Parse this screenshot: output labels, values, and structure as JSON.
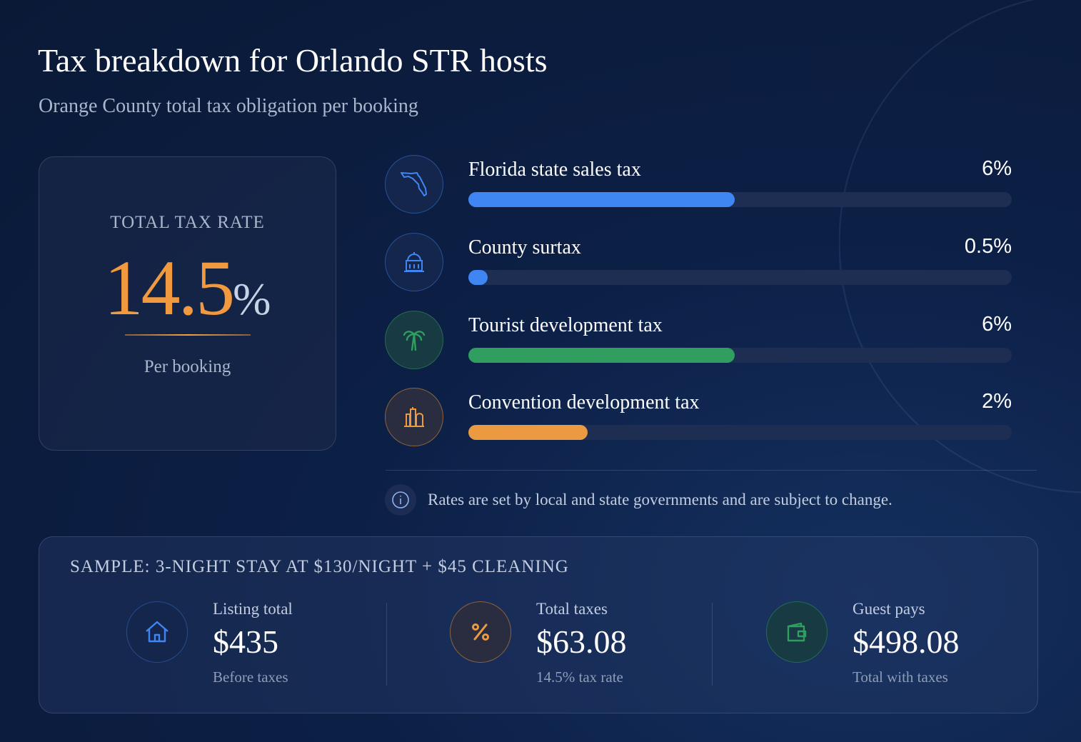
{
  "header": {
    "title": "Tax breakdown for Orlando STR hosts",
    "subtitle": "Orange County total tax obligation per booking"
  },
  "summary_card": {
    "label": "TOTAL TAX RATE",
    "value": "14.5",
    "unit": "%",
    "caption": "Per booking"
  },
  "taxes": [
    {
      "name": "Florida state sales tax",
      "rate": "6%",
      "fill_pct": 49,
      "color": "#3f86f2",
      "icon": "florida-map-icon"
    },
    {
      "name": "County surtax",
      "rate": "0.5%",
      "fill_pct": 3.5,
      "color": "#3f86f2",
      "icon": "government-building-icon"
    },
    {
      "name": "Tourist development tax",
      "rate": "6%",
      "fill_pct": 49,
      "color": "#2f9e5f",
      "icon": "palm-tree-icon"
    },
    {
      "name": "Convention development tax",
      "rate": "2%",
      "fill_pct": 22,
      "color": "#ec9a42",
      "icon": "city-skyline-icon"
    }
  ],
  "note": "Rates are set by local and state governments and are subject to change.",
  "sample": {
    "heading": "SAMPLE: 3-NIGHT STAY AT $130/NIGHT + $45 CLEANING",
    "items": [
      {
        "title": "Listing total",
        "value": "$435",
        "sub": "Before taxes",
        "icon": "house-icon",
        "color": "#3f86f2"
      },
      {
        "title": "Total taxes",
        "value": "$63.08",
        "sub": "14.5% tax rate",
        "icon": "percent-icon",
        "color": "#ec9a42"
      },
      {
        "title": "Guest pays",
        "value": "$498.08",
        "sub": "Total with taxes",
        "icon": "wallet-icon",
        "color": "#2f9e5f"
      }
    ]
  }
}
